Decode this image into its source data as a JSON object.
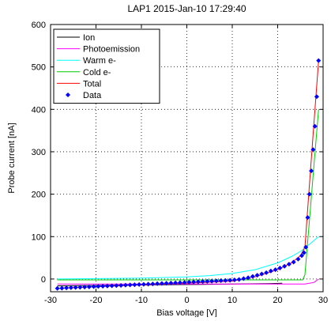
{
  "chart_data": {
    "type": "line",
    "title": "LAP1 2015-Jan-10 17:29:40",
    "xlabel": "Bias voltage [V]",
    "ylabel": "Probe current [nA]",
    "xlim": [
      -30,
      30
    ],
    "ylim": [
      -30,
      600
    ],
    "xticks": [
      -30,
      -20,
      -10,
      0,
      10,
      20,
      30
    ],
    "yticks": [
      0,
      100,
      200,
      300,
      400,
      500,
      600
    ],
    "grid": true,
    "legend_position": "top-left",
    "series": [
      {
        "name": "Ion",
        "color": "#000000",
        "style": "line",
        "x": [
          -28.5,
          -20,
          -10,
          0,
          10,
          18,
          21
        ],
        "y": [
          -16,
          -15,
          -14,
          -13,
          -12,
          -11,
          -10
        ]
      },
      {
        "name": "Photoemission",
        "color": "#ff00ff",
        "style": "line",
        "x": [
          -28.5,
          -10,
          0,
          10,
          20,
          26,
          28,
          29
        ],
        "y": [
          -12,
          -12,
          -12,
          -12,
          -12,
          -12,
          -8,
          0
        ]
      },
      {
        "name": "Warm e-",
        "color": "#00ffff",
        "style": "line",
        "x": [
          -28.5,
          -20,
          -10,
          0,
          5,
          10,
          15,
          20,
          23,
          25,
          27,
          29
        ],
        "y": [
          0,
          1,
          2,
          5,
          8,
          13,
          22,
          38,
          53,
          65,
          82,
          100
        ]
      },
      {
        "name": "Cold e-",
        "color": "#00cc00",
        "style": "line",
        "x": [
          -28.5,
          20,
          25.5,
          26,
          27,
          28,
          29
        ],
        "y": [
          -2,
          -2,
          -2,
          10,
          140,
          270,
          400
        ]
      },
      {
        "name": "Total",
        "color": "#ff0000",
        "style": "line",
        "x": [
          -28.5,
          -20,
          -10,
          0,
          10,
          15,
          20,
          23,
          25,
          26,
          27,
          28,
          29
        ],
        "y": [
          -22,
          -18,
          -14,
          -10,
          -5,
          5,
          22,
          38,
          55,
          75,
          225,
          370,
          515
        ]
      },
      {
        "name": "Data",
        "color": "#0000ff",
        "style": "markers",
        "x": [
          -28.5,
          -27.5,
          -26.5,
          -25.5,
          -24.5,
          -23.5,
          -22.5,
          -21.5,
          -20.5,
          -19.5,
          -18.5,
          -17.5,
          -16.5,
          -15.5,
          -14.5,
          -13.5,
          -12.5,
          -11.5,
          -10.5,
          -9.5,
          -8.5,
          -7.5,
          -6.5,
          -5.5,
          -4.5,
          -3.5,
          -2.5,
          -1.5,
          -0.5,
          0.5,
          1.5,
          2.5,
          3.5,
          4.5,
          5.5,
          6.5,
          7.5,
          8.5,
          9.5,
          10.5,
          11.5,
          12.5,
          13.5,
          14.5,
          15.5,
          16.5,
          17.5,
          18.5,
          19.5,
          20.5,
          21.5,
          22.5,
          23.5,
          24.5,
          25.3,
          25.8,
          26.2,
          26.6,
          27.0,
          27.4,
          27.8,
          28.2,
          28.6,
          29.0
        ],
        "y": [
          -22,
          -21.5,
          -21,
          -20.5,
          -20,
          -19.5,
          -19,
          -18.5,
          -18,
          -17.5,
          -17,
          -16.5,
          -16,
          -15.5,
          -15,
          -14.5,
          -14,
          -13.5,
          -13,
          -12.5,
          -12,
          -11.5,
          -11,
          -10.5,
          -10,
          -9.5,
          -9,
          -8.5,
          -8,
          -7.5,
          -7,
          -6.5,
          -6,
          -5.5,
          -5,
          -4.5,
          -4,
          -3.5,
          -3,
          -2,
          -1,
          1,
          3,
          6,
          9,
          12,
          15,
          19,
          22,
          26,
          30,
          35,
          40,
          47,
          55,
          62,
          75,
          145,
          200,
          255,
          305,
          360,
          430,
          515
        ]
      }
    ]
  }
}
